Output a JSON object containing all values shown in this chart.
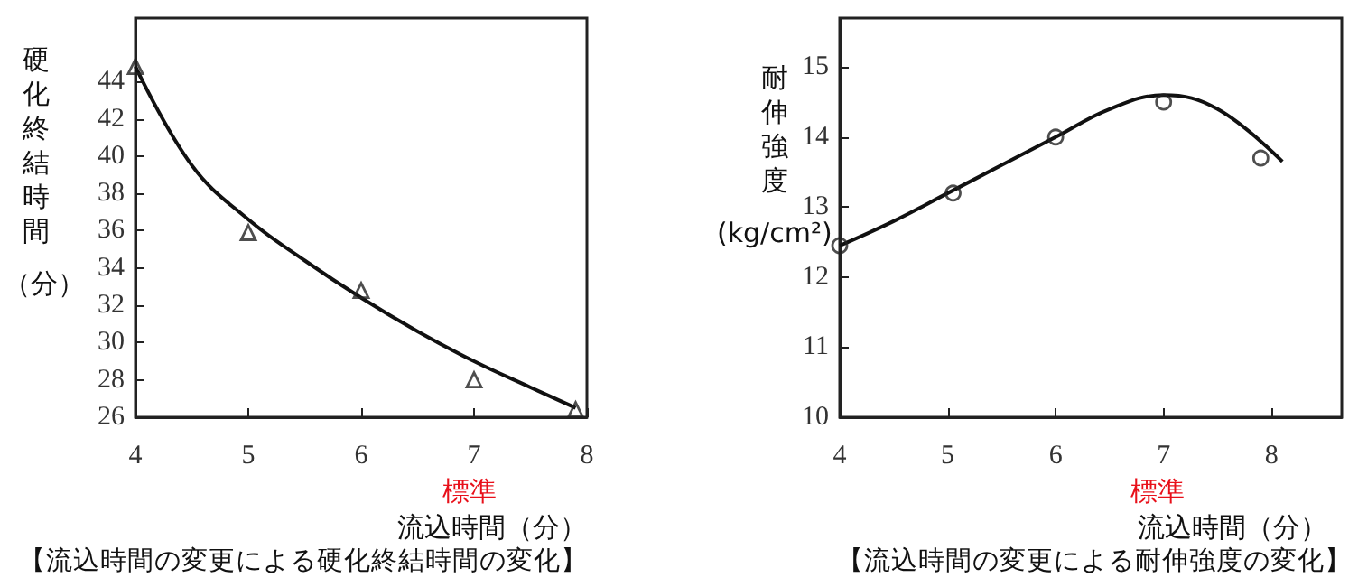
{
  "chart_data": [
    {
      "type": "scatter",
      "xlabel": "流込時間（分）",
      "ylabel": "硬化終結時間（分）",
      "xlim": [
        4,
        8
      ],
      "xticks": [
        4,
        5,
        6,
        7,
        8
      ],
      "ylim": [
        26,
        47.4
      ],
      "yticks": [
        26,
        28,
        30,
        32,
        34,
        36,
        38,
        40,
        42,
        44
      ],
      "grid": false,
      "series": [
        {
          "type": "scatter",
          "marker": "triangle",
          "color": "#222222",
          "x": [
            4,
            5,
            6,
            7,
            7.9
          ],
          "values": [
            44.8,
            35.9,
            32.8,
            28,
            26.4
          ]
        },
        {
          "type": "line",
          "marker": "none",
          "line_style": "solid",
          "color": "#111111",
          "x": [
            4,
            4.5,
            5,
            5.5,
            6,
            6.5,
            7,
            7.5,
            7.9
          ],
          "values": [
            44.8,
            39.5,
            36.6,
            34.4,
            32.4,
            30.6,
            29,
            27.6,
            26.5
          ]
        }
      ],
      "annotations": [
        "標準",
        "【流込時間の変更による硬化終結時間の変化】"
      ]
    },
    {
      "type": "scatter",
      "xlabel": "流込時間（分）",
      "ylabel": "耐伸強度(kg/cm²)",
      "xlim": [
        4,
        8.65
      ],
      "xticks": [
        4,
        5,
        6,
        7,
        8
      ],
      "ylim": [
        10,
        15.7
      ],
      "yticks": [
        10,
        11,
        12,
        13,
        14,
        15
      ],
      "grid": false,
      "series": [
        {
          "type": "scatter",
          "marker": "circle",
          "color": "#222222",
          "x": [
            4,
            5.05,
            6,
            7,
            7.9
          ],
          "values": [
            12.45,
            13.2,
            14,
            14.5,
            13.7
          ]
        },
        {
          "type": "line",
          "marker": "none",
          "line_style": "solid",
          "color": "#111111",
          "x": [
            4,
            4.5,
            5,
            5.5,
            6,
            6.5,
            7,
            7.5,
            8.1
          ],
          "values": [
            12.45,
            12.8,
            13.2,
            13.6,
            14,
            14.4,
            14.6,
            14.4,
            13.65
          ]
        }
      ],
      "annotations": [
        "標準",
        "【流込時間の変更による耐伸強度の変化】"
      ]
    }
  ]
}
